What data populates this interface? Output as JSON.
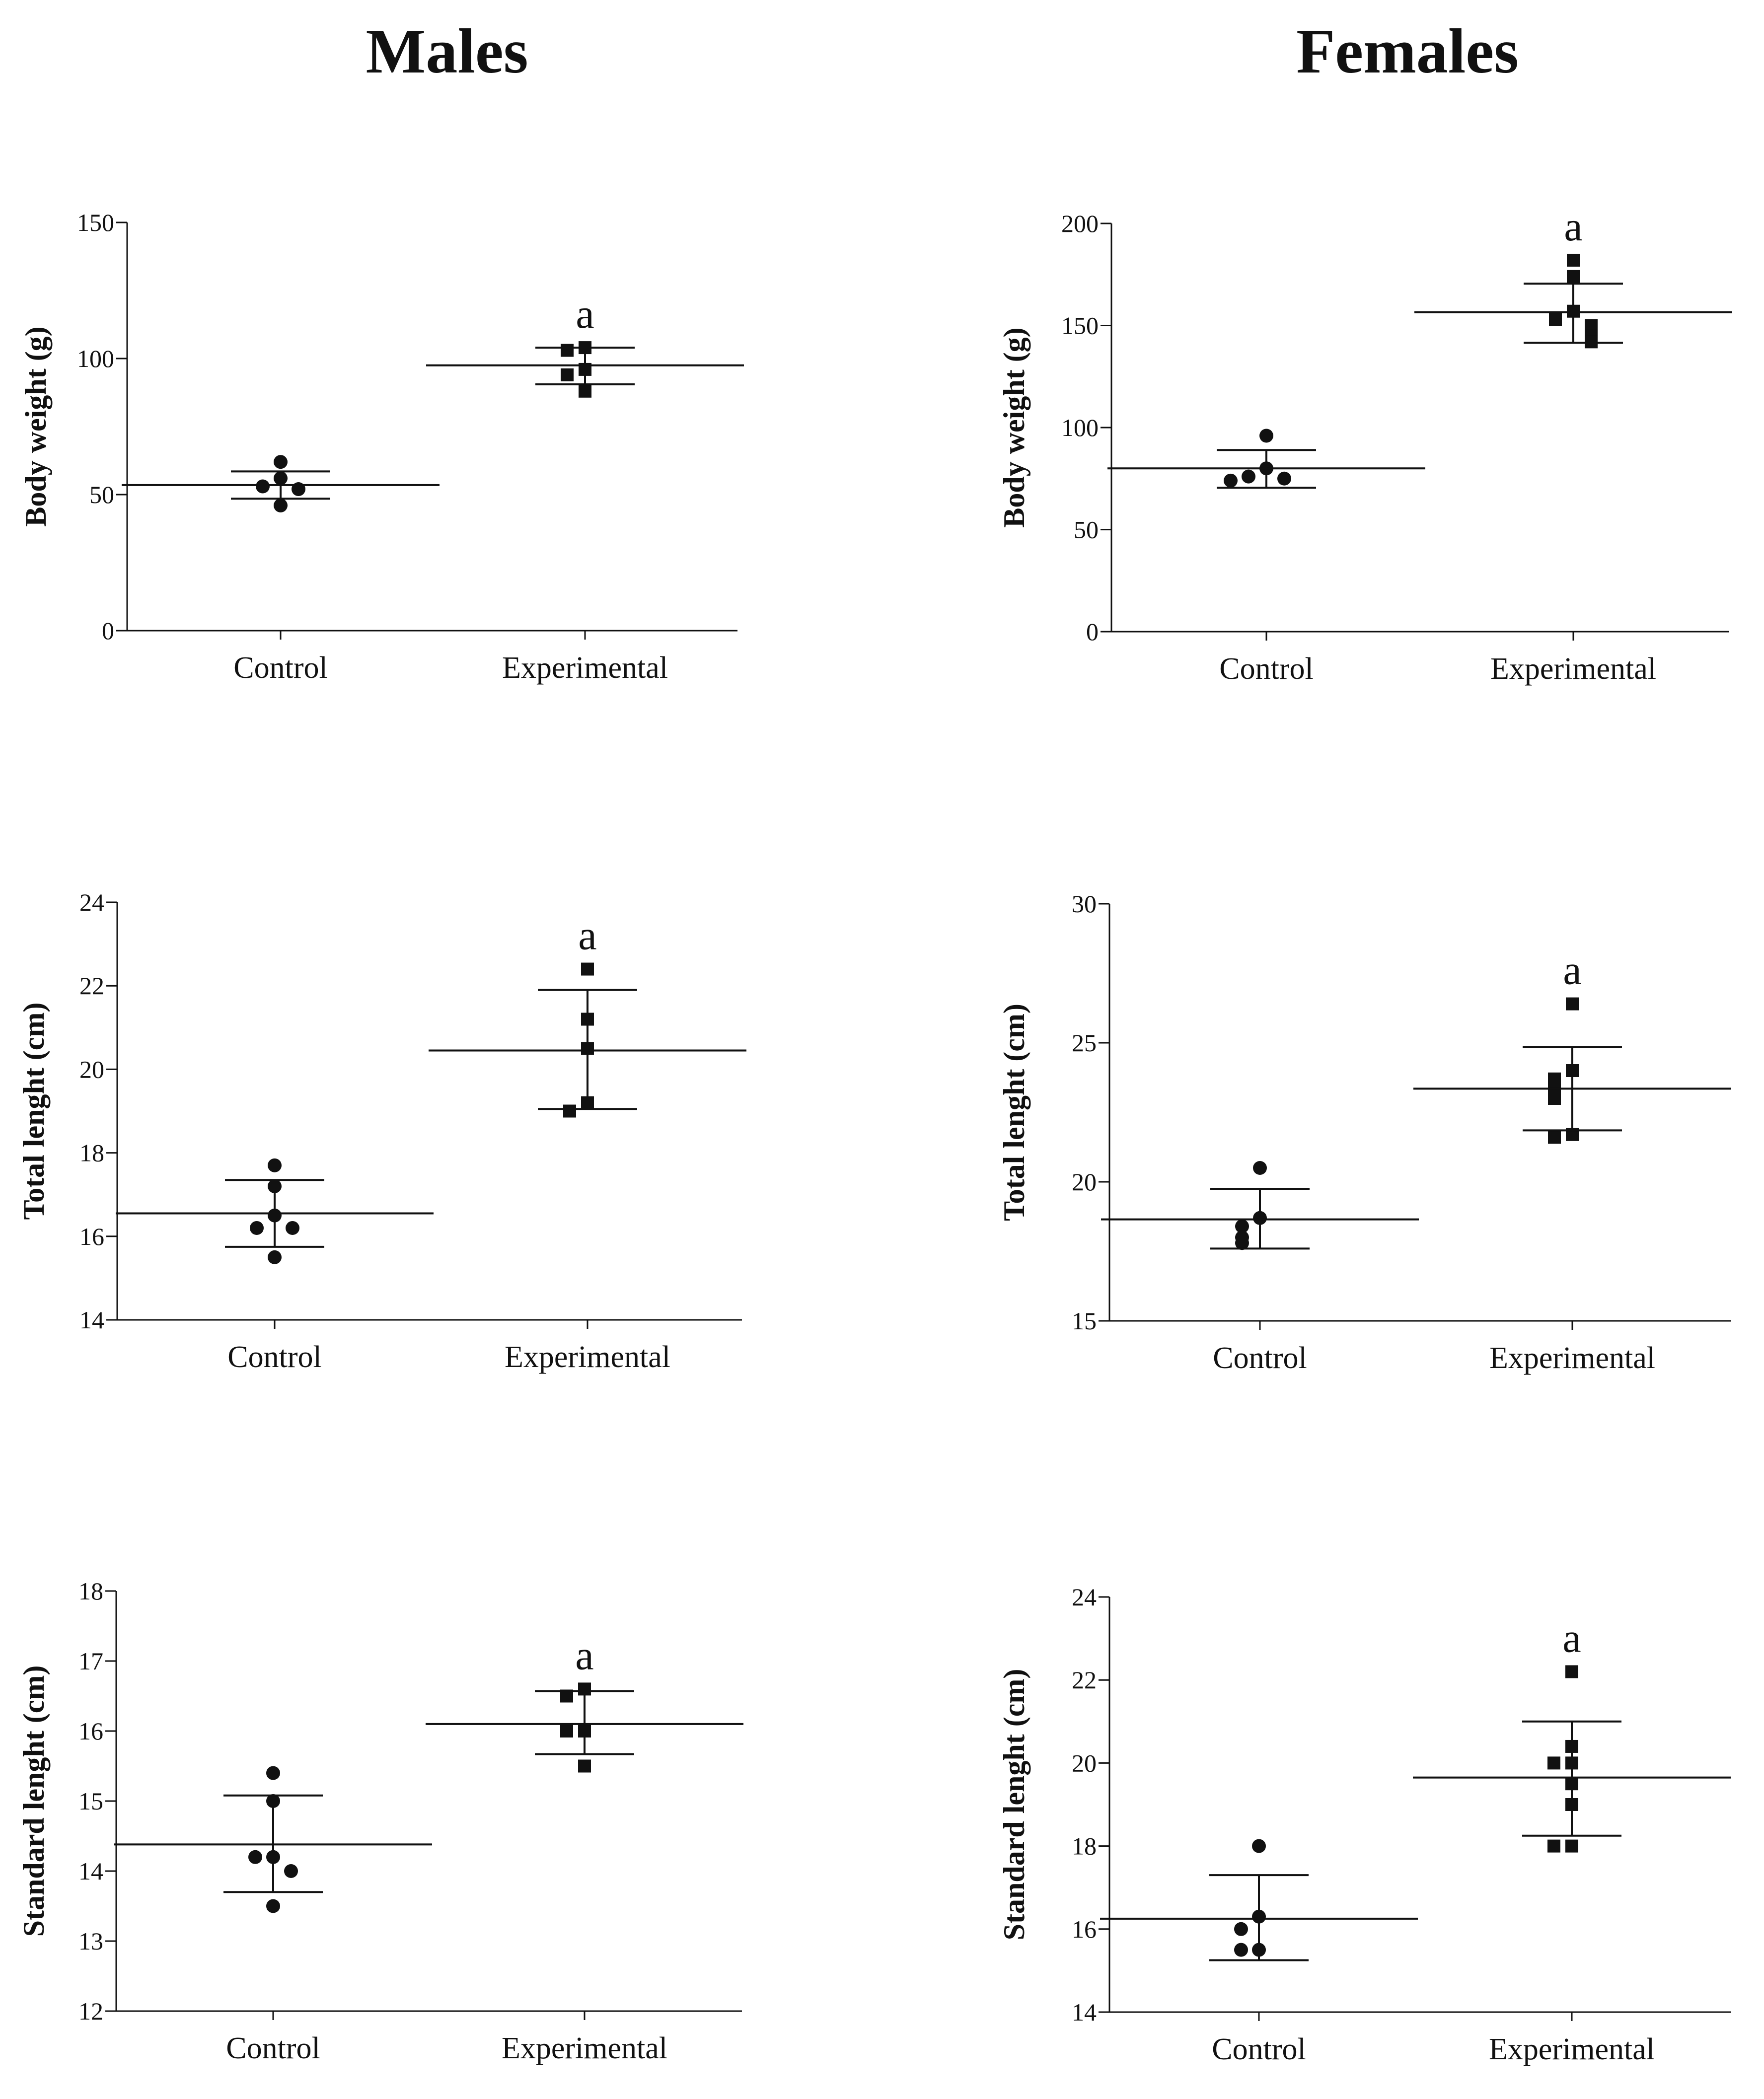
{
  "figure": {
    "columns": [
      {
        "title": "Males"
      },
      {
        "title": "Females"
      }
    ]
  },
  "colors": {
    "ink": "#111111",
    "background": "#ffffff"
  },
  "chart_data": [
    {
      "type": "scatter",
      "panel": "males-body-weight",
      "column": "Males",
      "ylabel": "Body weight (g)",
      "xlabel": "",
      "categories": [
        "Control",
        "Experimental"
      ],
      "ylim": [
        0,
        150
      ],
      "yticks": [
        0,
        50,
        100,
        150
      ],
      "markers": [
        "circle",
        "square"
      ],
      "series": [
        {
          "name": "Control",
          "points": [
            62,
            56,
            53,
            52,
            46
          ],
          "mean": 53.5,
          "sd_low": 48.5,
          "sd_high": 58.5
        },
        {
          "name": "Experimental",
          "points": [
            104,
            103,
            96,
            94,
            88
          ],
          "mean": 97.5,
          "sd_low": 90.5,
          "sd_high": 104
        }
      ],
      "annotations": [
        {
          "category": "Experimental",
          "text": "a"
        }
      ]
    },
    {
      "type": "scatter",
      "panel": "females-body-weight",
      "column": "Females",
      "ylabel": "Body weight (g)",
      "xlabel": "",
      "categories": [
        "Control",
        "Experimental"
      ],
      "ylim": [
        0,
        200
      ],
      "yticks": [
        0,
        50,
        100,
        150,
        200
      ],
      "markers": [
        "circle",
        "square"
      ],
      "series": [
        {
          "name": "Control",
          "points": [
            96,
            80,
            76,
            75,
            74
          ],
          "mean": 80,
          "sd_low": 70.5,
          "sd_high": 89
        },
        {
          "name": "Experimental",
          "points": [
            182,
            174,
            157,
            153,
            150,
            146,
            145,
            142
          ],
          "mean": 156.5,
          "sd_low": 141.5,
          "sd_high": 170.5
        }
      ],
      "annotations": [
        {
          "category": "Experimental",
          "text": "a"
        }
      ]
    },
    {
      "type": "scatter",
      "panel": "males-total-length",
      "column": "Males",
      "ylabel": "Total lenght (cm)",
      "xlabel": "",
      "categories": [
        "Control",
        "Experimental"
      ],
      "ylim": [
        14,
        24
      ],
      "yticks": [
        14,
        16,
        18,
        20,
        22,
        24
      ],
      "markers": [
        "circle",
        "square"
      ],
      "series": [
        {
          "name": "Control",
          "points": [
            17.7,
            17.2,
            16.5,
            16.2,
            16.2,
            15.5
          ],
          "mean": 16.55,
          "sd_low": 15.75,
          "sd_high": 17.35
        },
        {
          "name": "Experimental",
          "points": [
            22.4,
            21.2,
            20.5,
            19.2,
            19.0
          ],
          "mean": 20.45,
          "sd_low": 19.05,
          "sd_high": 21.9
        }
      ],
      "annotations": [
        {
          "category": "Experimental",
          "text": "a"
        }
      ]
    },
    {
      "type": "scatter",
      "panel": "females-total-length",
      "column": "Females",
      "ylabel": "Total lenght (cm)",
      "xlabel": "",
      "categories": [
        "Control",
        "Experimental"
      ],
      "ylim": [
        15,
        30
      ],
      "yticks": [
        15,
        20,
        25,
        30
      ],
      "markers": [
        "circle",
        "square"
      ],
      "series": [
        {
          "name": "Control",
          "points": [
            20.5,
            18.7,
            18.4,
            18.0,
            17.8
          ],
          "mean": 18.65,
          "sd_low": 17.6,
          "sd_high": 19.75
        },
        {
          "name": "Experimental",
          "points": [
            26.4,
            24.0,
            23.7,
            23.3,
            23.0,
            21.7,
            21.6
          ],
          "mean": 23.35,
          "sd_low": 21.85,
          "sd_high": 24.85
        }
      ],
      "annotations": [
        {
          "category": "Experimental",
          "text": "a"
        }
      ]
    },
    {
      "type": "scatter",
      "panel": "males-standard-length",
      "column": "Males",
      "ylabel": "Standard lenght (cm)",
      "xlabel": "",
      "categories": [
        "Control",
        "Experimental"
      ],
      "ylim": [
        12,
        18
      ],
      "yticks": [
        12,
        13,
        14,
        15,
        16,
        17,
        18
      ],
      "markers": [
        "circle",
        "square"
      ],
      "series": [
        {
          "name": "Control",
          "points": [
            15.4,
            15.0,
            14.2,
            14.2,
            14.0,
            13.5
          ],
          "mean": 14.38,
          "sd_low": 13.7,
          "sd_high": 15.08
        },
        {
          "name": "Experimental",
          "points": [
            16.6,
            16.5,
            16.0,
            16.0,
            15.5
          ],
          "mean": 16.1,
          "sd_low": 15.67,
          "sd_high": 16.57
        }
      ],
      "annotations": [
        {
          "category": "Experimental",
          "text": "a"
        }
      ]
    },
    {
      "type": "scatter",
      "panel": "females-standard-length",
      "column": "Females",
      "ylabel": "Standard lenght (cm)",
      "xlabel": "",
      "categories": [
        "Control",
        "Experimental"
      ],
      "ylim": [
        14,
        24
      ],
      "yticks": [
        14,
        16,
        18,
        20,
        22,
        24
      ],
      "markers": [
        "circle",
        "square"
      ],
      "series": [
        {
          "name": "Control",
          "points": [
            18.0,
            16.3,
            16.0,
            15.5,
            15.5
          ],
          "mean": 16.25,
          "sd_low": 15.25,
          "sd_high": 17.3
        },
        {
          "name": "Experimental",
          "points": [
            22.2,
            20.4,
            20.0,
            20.0,
            19.5,
            19.0,
            18.0,
            18.0
          ],
          "mean": 19.65,
          "sd_low": 18.25,
          "sd_high": 21.0
        }
      ],
      "annotations": [
        {
          "category": "Experimental",
          "text": "a"
        }
      ]
    }
  ]
}
